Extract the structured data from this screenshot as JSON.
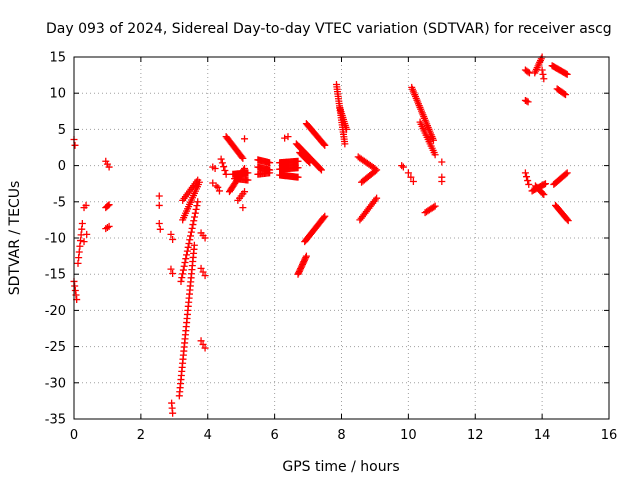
{
  "chart_data": {
    "type": "scatter",
    "title": "Day 093 of 2024, Sidereal Day-to-day VTEC variation (SDTVAR) for receiver ascg",
    "xlabel": "GPS time / hours",
    "ylabel": "SDTVAR / TECUs",
    "xlim": [
      0,
      16
    ],
    "ylim": [
      -35,
      15
    ],
    "xticks": [
      0,
      2,
      4,
      6,
      8,
      10,
      12,
      14,
      16
    ],
    "yticks": [
      15,
      10,
      5,
      0,
      -5,
      -10,
      -15,
      -20,
      -25,
      -30,
      -35
    ],
    "grid": true,
    "marker": "+",
    "color": "#ff0000",
    "segments": [
      {
        "x0": 0.0,
        "y0": 3.6,
        "x1": 0.03,
        "y1": 2.8,
        "n": 2
      },
      {
        "x0": 0.0,
        "y0": -16.0,
        "x1": 0.08,
        "y1": -18.5,
        "n": 5
      },
      {
        "x0": 0.12,
        "y0": -13.5,
        "x1": 0.25,
        "y1": -8.0,
        "n": 8
      },
      {
        "x0": 0.3,
        "y0": -10.5,
        "x1": 0.38,
        "y1": -9.5,
        "n": 2
      },
      {
        "x0": 0.3,
        "y0": -5.8,
        "x1": 0.36,
        "y1": -5.5,
        "n": 2
      },
      {
        "x0": 0.95,
        "y0": -5.8,
        "x1": 1.05,
        "y1": -5.4,
        "n": 4
      },
      {
        "x0": 0.95,
        "y0": -8.7,
        "x1": 1.05,
        "y1": -8.4,
        "n": 3
      },
      {
        "x0": 0.95,
        "y0": 0.6,
        "x1": 1.05,
        "y1": -0.2,
        "n": 3
      },
      {
        "x0": 2.55,
        "y0": -4.2,
        "x1": 2.55,
        "y1": -5.5,
        "n": 2
      },
      {
        "x0": 2.55,
        "y0": -8.0,
        "x1": 2.58,
        "y1": -8.8,
        "n": 2
      },
      {
        "x0": 2.9,
        "y0": -9.5,
        "x1": 2.95,
        "y1": -10.2,
        "n": 2
      },
      {
        "x0": 2.9,
        "y0": -14.3,
        "x1": 2.95,
        "y1": -14.9,
        "n": 2
      },
      {
        "x0": 2.92,
        "y0": -32.8,
        "x1": 2.95,
        "y1": -34.2,
        "n": 3
      },
      {
        "x0": 3.15,
        "y0": -31.8,
        "x1": 3.6,
        "y1": -11.0,
        "n": 38
      },
      {
        "x0": 3.2,
        "y0": -16.0,
        "x1": 3.7,
        "y1": -5.0,
        "n": 22
      },
      {
        "x0": 3.25,
        "y0": -7.5,
        "x1": 3.75,
        "y1": -2.3,
        "n": 18
      },
      {
        "x0": 3.25,
        "y0": -4.8,
        "x1": 3.7,
        "y1": -2.0,
        "n": 12
      },
      {
        "x0": 3.8,
        "y0": -9.3,
        "x1": 3.92,
        "y1": -10.0,
        "n": 3
      },
      {
        "x0": 3.8,
        "y0": -14.2,
        "x1": 3.92,
        "y1": -15.2,
        "n": 3
      },
      {
        "x0": 3.8,
        "y0": -24.2,
        "x1": 3.92,
        "y1": -25.2,
        "n": 3
      },
      {
        "x0": 4.15,
        "y0": -0.2,
        "x1": 4.22,
        "y1": -0.4,
        "n": 2
      },
      {
        "x0": 4.15,
        "y0": -2.4,
        "x1": 4.25,
        "y1": -2.8,
        "n": 2
      },
      {
        "x0": 4.3,
        "y0": -3.0,
        "x1": 4.35,
        "y1": -3.5,
        "n": 2
      },
      {
        "x0": 4.4,
        "y0": 0.9,
        "x1": 4.55,
        "y1": -1.2,
        "n": 5
      },
      {
        "x0": 4.55,
        "y0": 4.0,
        "x1": 5.05,
        "y1": 1.0,
        "n": 18
      },
      {
        "x0": 4.65,
        "y0": -3.6,
        "x1": 5.1,
        "y1": -0.4,
        "n": 18
      },
      {
        "x0": 4.75,
        "y0": -1.2,
        "x1": 5.2,
        "y1": -1.0,
        "n": 16
      },
      {
        "x0": 4.8,
        "y0": -1.8,
        "x1": 5.2,
        "y1": -2.0,
        "n": 12
      },
      {
        "x0": 4.9,
        "y0": -4.8,
        "x1": 5.1,
        "y1": -3.6,
        "n": 5
      },
      {
        "x0": 5.05,
        "y0": -5.8,
        "x1": 5.1,
        "y1": -5.6,
        "n": 1
      },
      {
        "x0": 5.1,
        "y0": 3.7,
        "x1": 5.1,
        "y1": 3.7,
        "n": 1
      },
      {
        "x0": 5.5,
        "y0": 0.8,
        "x1": 5.85,
        "y1": 0.4,
        "n": 12
      },
      {
        "x0": 5.5,
        "y0": -0.2,
        "x1": 5.85,
        "y1": -0.6,
        "n": 12
      },
      {
        "x0": 5.5,
        "y0": -1.2,
        "x1": 5.85,
        "y1": -1.0,
        "n": 10
      },
      {
        "x0": 6.15,
        "y0": 0.4,
        "x1": 6.7,
        "y1": 0.6,
        "n": 20
      },
      {
        "x0": 6.15,
        "y0": -0.5,
        "x1": 6.7,
        "y1": -0.3,
        "n": 20
      },
      {
        "x0": 6.15,
        "y0": -1.3,
        "x1": 6.7,
        "y1": -1.6,
        "n": 20
      },
      {
        "x0": 6.3,
        "y0": 3.8,
        "x1": 6.4,
        "y1": 4.0,
        "n": 2
      },
      {
        "x0": 6.65,
        "y0": 3.0,
        "x1": 7.4,
        "y1": -0.6,
        "n": 24
      },
      {
        "x0": 6.7,
        "y0": -15.0,
        "x1": 6.95,
        "y1": -12.5,
        "n": 14
      },
      {
        "x0": 6.75,
        "y0": 1.8,
        "x1": 7.05,
        "y1": 0.4,
        "n": 10
      },
      {
        "x0": 6.9,
        "y0": -10.5,
        "x1": 7.5,
        "y1": -7.0,
        "n": 22
      },
      {
        "x0": 6.95,
        "y0": 5.8,
        "x1": 7.5,
        "y1": 2.8,
        "n": 22
      },
      {
        "x0": 7.85,
        "y0": 11.2,
        "x1": 8.1,
        "y1": 3.0,
        "n": 26
      },
      {
        "x0": 7.95,
        "y0": 8.0,
        "x1": 8.15,
        "y1": 5.0,
        "n": 12
      },
      {
        "x0": 8.5,
        "y0": 1.2,
        "x1": 9.0,
        "y1": -0.4,
        "n": 12
      },
      {
        "x0": 8.55,
        "y0": -7.5,
        "x1": 9.05,
        "y1": -4.5,
        "n": 14
      },
      {
        "x0": 8.6,
        "y0": -2.3,
        "x1": 9.05,
        "y1": -0.6,
        "n": 12
      },
      {
        "x0": 9.8,
        "y0": 0.0,
        "x1": 9.85,
        "y1": -0.2,
        "n": 2
      },
      {
        "x0": 10.0,
        "y0": -1.0,
        "x1": 10.15,
        "y1": -2.2,
        "n": 3
      },
      {
        "x0": 10.1,
        "y0": 10.8,
        "x1": 10.75,
        "y1": 3.5,
        "n": 30
      },
      {
        "x0": 10.35,
        "y0": 6.0,
        "x1": 10.8,
        "y1": 1.5,
        "n": 16
      },
      {
        "x0": 10.5,
        "y0": -6.5,
        "x1": 10.8,
        "y1": -5.6,
        "n": 8
      },
      {
        "x0": 11.0,
        "y0": 0.5,
        "x1": 11.0,
        "y1": 0.5,
        "n": 1
      },
      {
        "x0": 11.0,
        "y0": -1.6,
        "x1": 11.0,
        "y1": -2.2,
        "n": 2
      },
      {
        "x0": 13.5,
        "y0": 13.2,
        "x1": 13.62,
        "y1": 12.8,
        "n": 4
      },
      {
        "x0": 13.5,
        "y0": 9.0,
        "x1": 13.58,
        "y1": 8.8,
        "n": 3
      },
      {
        "x0": 13.5,
        "y0": -1.0,
        "x1": 13.6,
        "y1": -2.6,
        "n": 4
      },
      {
        "x0": 13.7,
        "y0": -3.5,
        "x1": 14.1,
        "y1": -2.5,
        "n": 12
      },
      {
        "x0": 13.78,
        "y0": 12.8,
        "x1": 14.0,
        "y1": 15.0,
        "n": 10
      },
      {
        "x0": 13.8,
        "y0": -2.8,
        "x1": 14.05,
        "y1": -4.0,
        "n": 8
      },
      {
        "x0": 14.0,
        "y0": 13.2,
        "x1": 14.05,
        "y1": 12.0,
        "n": 3
      },
      {
        "x0": 14.3,
        "y0": 13.8,
        "x1": 14.75,
        "y1": 12.6,
        "n": 14
      },
      {
        "x0": 14.35,
        "y0": -2.6,
        "x1": 14.75,
        "y1": -1.0,
        "n": 12
      },
      {
        "x0": 14.4,
        "y0": -5.5,
        "x1": 14.78,
        "y1": -7.6,
        "n": 14
      },
      {
        "x0": 14.45,
        "y0": 10.6,
        "x1": 14.7,
        "y1": 9.8,
        "n": 8
      }
    ]
  }
}
